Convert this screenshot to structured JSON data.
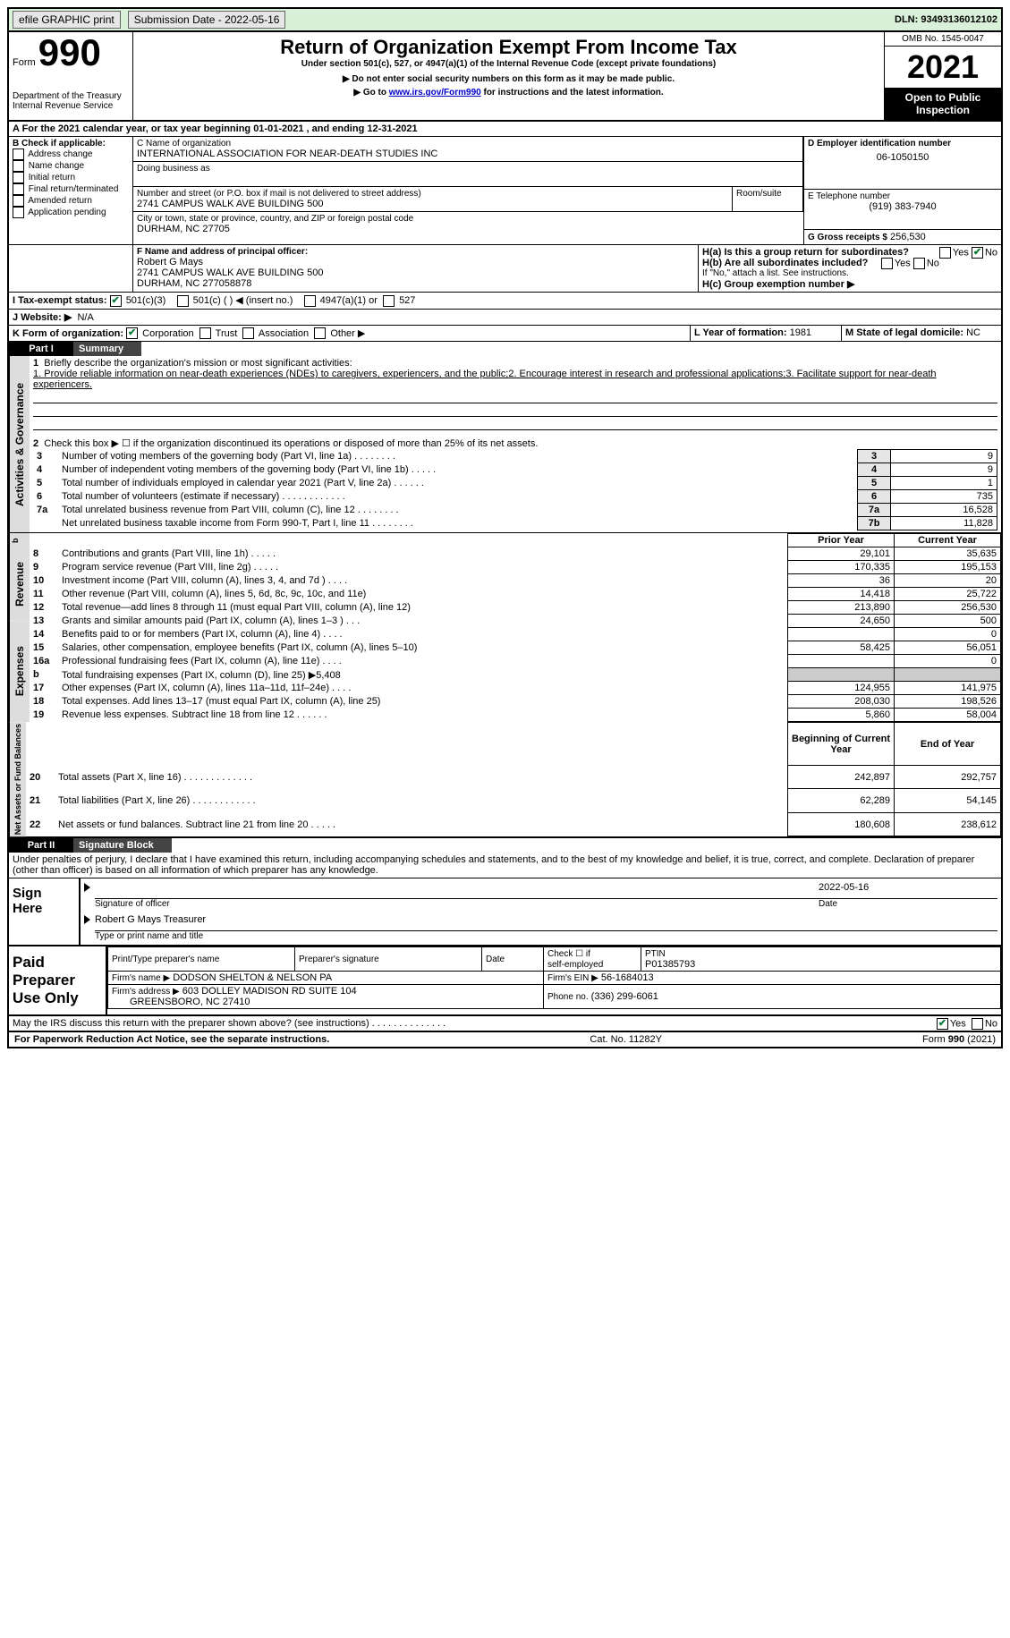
{
  "topbar": {
    "efile": "efile GRAPHIC print",
    "sub_label": "Submission Date - 2022-05-16",
    "dln": "DLN: 93493136012102"
  },
  "header": {
    "form_word": "Form",
    "form_num": "990",
    "dept": "Department of the Treasury",
    "irs": "Internal Revenue Service",
    "title": "Return of Organization Exempt From Income Tax",
    "subtitle": "Under section 501(c), 527, or 4947(a)(1) of the Internal Revenue Code (except private foundations)",
    "note1": "▶ Do not enter social security numbers on this form as it may be made public.",
    "note2_pre": "▶ Go to ",
    "note2_link": "www.irs.gov/Form990",
    "note2_post": " for instructions and the latest information.",
    "omb": "OMB No. 1545-0047",
    "year": "2021",
    "open": "Open to Public Inspection"
  },
  "A": {
    "line": "A For the 2021 calendar year, or tax year beginning 01-01-2021    , and ending 12-31-2021"
  },
  "B": {
    "label": "B Check if applicable:",
    "opts": [
      "Address change",
      "Name change",
      "Initial return",
      "Final return/terminated",
      "Amended return",
      "Application pending"
    ]
  },
  "C": {
    "name_label": "C Name of organization",
    "name": "INTERNATIONAL ASSOCIATION FOR NEAR-DEATH STUDIES INC",
    "dba_label": "Doing business as",
    "addr_label": "Number and street (or P.O. box if mail is not delivered to street address)",
    "room": "Room/suite",
    "addr": "2741 CAMPUS WALK AVE BUILDING 500",
    "city_label": "City or town, state or province, country, and ZIP or foreign postal code",
    "city": "DURHAM, NC  27705"
  },
  "D": {
    "label": "D Employer identification number",
    "val": "06-1050150"
  },
  "E": {
    "label": "E Telephone number",
    "val": "(919) 383-7940"
  },
  "G": {
    "label": "G Gross receipts $",
    "val": "256,530"
  },
  "F": {
    "label": "F  Name and address of principal officer:",
    "name": "Robert G Mays",
    "addr": "2741 CAMPUS WALK AVE BUILDING 500",
    "city": "DURHAM, NC  277058878"
  },
  "H": {
    "a": "H(a)  Is this a group return for subordinates?",
    "b": "H(b)  Are all subordinates included?",
    "b_note": "If \"No,\" attach a list. See instructions.",
    "c": "H(c)  Group exemption number ▶",
    "yes": "Yes",
    "no": "No"
  },
  "I": {
    "label": "I    Tax-exempt status:",
    "a": "501(c)(3)",
    "b": "501(c) (   ) ◀ (insert no.)",
    "c": "4947(a)(1) or",
    "d": "527"
  },
  "J": {
    "label": "J    Website: ▶",
    "val": "N/A"
  },
  "K": {
    "label": "K Form of organization:",
    "a": "Corporation",
    "b": "Trust",
    "c": "Association",
    "d": "Other ▶"
  },
  "L": {
    "label": "L Year of formation:",
    "val": "1981"
  },
  "M": {
    "label": "M State of legal domicile:",
    "val": "NC"
  },
  "part1": {
    "title": "Part I",
    "subtitle": "Summary"
  },
  "summary": {
    "side_act": "Activities & Governance",
    "side_rev": "Revenue",
    "side_exp": "Expenses",
    "side_net": "Net Assets or Fund Balances",
    "q1": "Briefly describe the organization's mission or most significant activities:",
    "mission": "1. Provide reliable information on near-death experiences (NDEs) to caregivers, experiencers, and the public;2. Encourage interest in research and professional applications;3. Facilitate support for near-death experiencers.",
    "q2": "Check this box ▶ ☐  if the organization discontinued its operations or disposed of more than 25% of its net assets.",
    "lines": [
      {
        "n": "3",
        "t": "Number of voting members of the governing body (Part VI, line 1a)   .    .    .    .    .    .    .    .",
        "k": "3",
        "v": "9"
      },
      {
        "n": "4",
        "t": "Number of independent voting members of the governing body (Part VI, line 1b)   .    .    .    .    .",
        "k": "4",
        "v": "9"
      },
      {
        "n": "5",
        "t": "Total number of individuals employed in calendar year 2021 (Part V, line 2a)   .    .    .    .    .    .",
        "k": "5",
        "v": "1"
      },
      {
        "n": "6",
        "t": "Total number of volunteers (estimate if necessary)    .    .    .    .    .    .    .    .    .    .    .    .",
        "k": "6",
        "v": "735"
      },
      {
        "n": "7a",
        "t": "Total unrelated business revenue from Part VIII, column (C), line 12   .    .    .    .    .    .    .    .",
        "k": "7a",
        "v": "16,528"
      },
      {
        "n": "",
        "t": "Net unrelated business taxable income from Form 990-T, Part I, line 11  .   .    .    .    .    .    .    .",
        "k": "7b",
        "v": "11,828"
      }
    ],
    "col_prior": "Prior Year",
    "col_curr": "Current Year",
    "two_col": [
      {
        "n": "8",
        "t": "Contributions and grants (Part VIII, line 1h)    .    .    .    .    .",
        "p": "29,101",
        "c": "35,635"
      },
      {
        "n": "9",
        "t": "Program service revenue (Part VIII, line 2g)    .    .    .    .    .",
        "p": "170,335",
        "c": "195,153"
      },
      {
        "n": "10",
        "t": "Investment income (Part VIII, column (A), lines 3, 4, and 7d )    .    .    .    .",
        "p": "36",
        "c": "20"
      },
      {
        "n": "11",
        "t": "Other revenue (Part VIII, column (A), lines 5, 6d, 8c, 9c, 10c, and 11e)",
        "p": "14,418",
        "c": "25,722"
      },
      {
        "n": "12",
        "t": "Total revenue—add lines 8 through 11 (must equal Part VIII, column (A), line 12)",
        "p": "213,890",
        "c": "256,530"
      },
      {
        "n": "13",
        "t": "Grants and similar amounts paid (Part IX, column (A), lines 1–3 )    .    .    .",
        "p": "24,650",
        "c": "500"
      },
      {
        "n": "14",
        "t": "Benefits paid to or for members (Part IX, column (A), line 4)    .    .    .    .",
        "p": "",
        "c": "0"
      },
      {
        "n": "15",
        "t": "Salaries, other compensation, employee benefits (Part IX, column (A), lines 5–10)",
        "p": "58,425",
        "c": "56,051"
      },
      {
        "n": "16a",
        "t": "Professional fundraising fees (Part IX, column (A), line 11e)    .    .    .    .",
        "p": "",
        "c": "0"
      },
      {
        "n": "b",
        "t": "Total fundraising expenses (Part IX, column (D), line 25) ▶5,408",
        "p": "GREY",
        "c": "GREY"
      },
      {
        "n": "17",
        "t": "Other expenses (Part IX, column (A), lines 11a–11d, 11f–24e)    .    .    .    .",
        "p": "124,955",
        "c": "141,975"
      },
      {
        "n": "18",
        "t": "Total expenses. Add lines 13–17 (must equal Part IX, column (A), line 25)",
        "p": "208,030",
        "c": "198,526"
      },
      {
        "n": "19",
        "t": "Revenue less expenses. Subtract line 18 from line 12  .    .    .    .    .    .",
        "p": "5,860",
        "c": "58,004"
      }
    ],
    "col_begin": "Beginning of Current Year",
    "col_end": "End of Year",
    "net": [
      {
        "n": "20",
        "t": "Total assets (Part X, line 16) .    .    .    .    .    .    .    .    .    .    .    .    .",
        "p": "242,897",
        "c": "292,757"
      },
      {
        "n": "21",
        "t": "Total liabilities (Part X, line 26) .    .    .    .    .    .    .    .    .    .    .    .",
        "p": "62,289",
        "c": "54,145"
      },
      {
        "n": "22",
        "t": "Net assets or fund balances. Subtract line 21 from line 20  .    .    .    .    .",
        "p": "180,608",
        "c": "238,612"
      }
    ]
  },
  "part2": {
    "title": "Part II",
    "subtitle": "Signature Block"
  },
  "penalties": "Under penalties of perjury, I declare that I have examined this return, including accompanying schedules and statements, and to the best of my knowledge and belief, it is true, correct, and complete. Declaration of preparer (other than officer) is based on all information of which preparer has any knowledge.",
  "sign": {
    "here": "Sign Here",
    "sig_of_officer": "Signature of officer",
    "date": "Date",
    "date_val": "2022-05-16",
    "name_line": "Robert G Mays  Treasurer",
    "type_label": "Type or print name and title"
  },
  "paid": {
    "title": "Paid Preparer Use Only",
    "h1": "Print/Type preparer's name",
    "h2": "Preparer's signature",
    "h3": "Date",
    "h4a": "Check ☐ if",
    "h4b": "self-employed",
    "ptin_l": "PTIN",
    "ptin": "P01385793",
    "firm_name_l": "Firm's name   ▶",
    "firm_name": "DODSON SHELTON & NELSON PA",
    "ein_l": "Firm's EIN ▶",
    "ein": "56-1684013",
    "addr_l": "Firm's address ▶",
    "addr1": "603 DOLLEY MADISON RD SUITE 104",
    "addr2": "GREENSBORO, NC  27410",
    "phone_l": "Phone no.",
    "phone": "(336) 299-6061"
  },
  "discuss": {
    "q": "May the IRS discuss this return with the preparer shown above? (see instructions)   .    .    .    .    .    .    .    .    .    .    .    .    .    .",
    "yes": "Yes",
    "no": "No"
  },
  "footer": {
    "left": "For Paperwork Reduction Act Notice, see the separate instructions.",
    "mid": "Cat. No. 11282Y",
    "right": "Form 990 (2021)"
  }
}
